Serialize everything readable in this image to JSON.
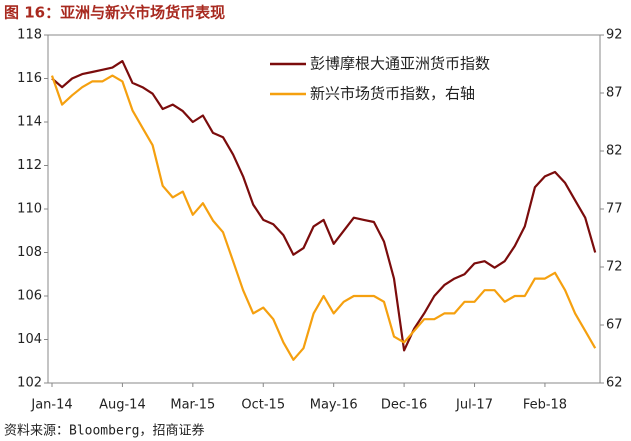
{
  "title": "图 16：亚洲与新兴市场货币表现",
  "source": "资料来源：Bloomberg，招商证券",
  "chart_data": {
    "type": "line",
    "categories": [
      "Jan-14",
      null,
      null,
      null,
      null,
      null,
      null,
      "Aug-14",
      null,
      null,
      null,
      null,
      null,
      null,
      "Mar-15",
      null,
      null,
      null,
      null,
      null,
      null,
      "Oct-15",
      null,
      null,
      null,
      null,
      null,
      null,
      "May-16",
      null,
      null,
      null,
      null,
      null,
      null,
      "Dec-16",
      null,
      null,
      null,
      null,
      null,
      null,
      "Jul-17",
      null,
      null,
      null,
      null,
      null,
      null,
      "Feb-18",
      null,
      null,
      null,
      null,
      null
    ],
    "series": [
      {
        "name": "彭博摩根大通亚洲货币指数",
        "color": "#7b0c0c",
        "values": [
          116,
          115.6,
          116,
          116.2,
          116.3,
          116.4,
          116.5,
          116.8,
          115.8,
          115.6,
          115.3,
          114.6,
          114.8,
          114.5,
          114,
          114.3,
          113.5,
          113.3,
          112.5,
          111.5,
          110.2,
          109.5,
          109.3,
          108.8,
          107.9,
          108.2,
          109.2,
          109.5,
          108.4,
          109,
          109.6,
          109.5,
          109.4,
          108.5,
          106.8,
          103.5,
          104.5,
          105.2,
          106,
          106.5,
          106.8,
          107,
          107.5,
          107.6,
          107.3,
          107.6,
          108.3,
          109.2,
          111,
          111.5,
          111.7,
          111.2,
          110.4,
          109.6,
          108
        ]
      },
      {
        "name": "新兴市场货币指数，右轴",
        "color": "#f5a00f",
        "axis": "y2",
        "values": [
          88.5,
          86,
          86.8,
          87.5,
          88,
          88,
          88.5,
          88,
          85.5,
          84,
          82.5,
          79,
          78,
          78.5,
          76.5,
          77.5,
          76,
          75,
          72.5,
          70,
          68,
          68.5,
          67.5,
          65.5,
          64,
          65,
          68,
          69.5,
          68,
          69,
          69.5,
          69.5,
          69.5,
          69,
          66,
          65.5,
          66.5,
          67.5,
          67.5,
          68,
          68,
          69,
          69,
          70,
          70,
          69,
          69.5,
          69.5,
          71,
          71,
          71.5,
          70,
          68,
          66.5,
          65
        ]
      }
    ],
    "ylim": [
      102,
      118
    ],
    "yticks": [
      102,
      104,
      106,
      108,
      110,
      112,
      114,
      116,
      118
    ],
    "y2lim": [
      62,
      92
    ],
    "y2ticks": [
      62,
      67,
      72,
      77,
      82,
      87,
      92
    ],
    "legend": "upper right"
  }
}
